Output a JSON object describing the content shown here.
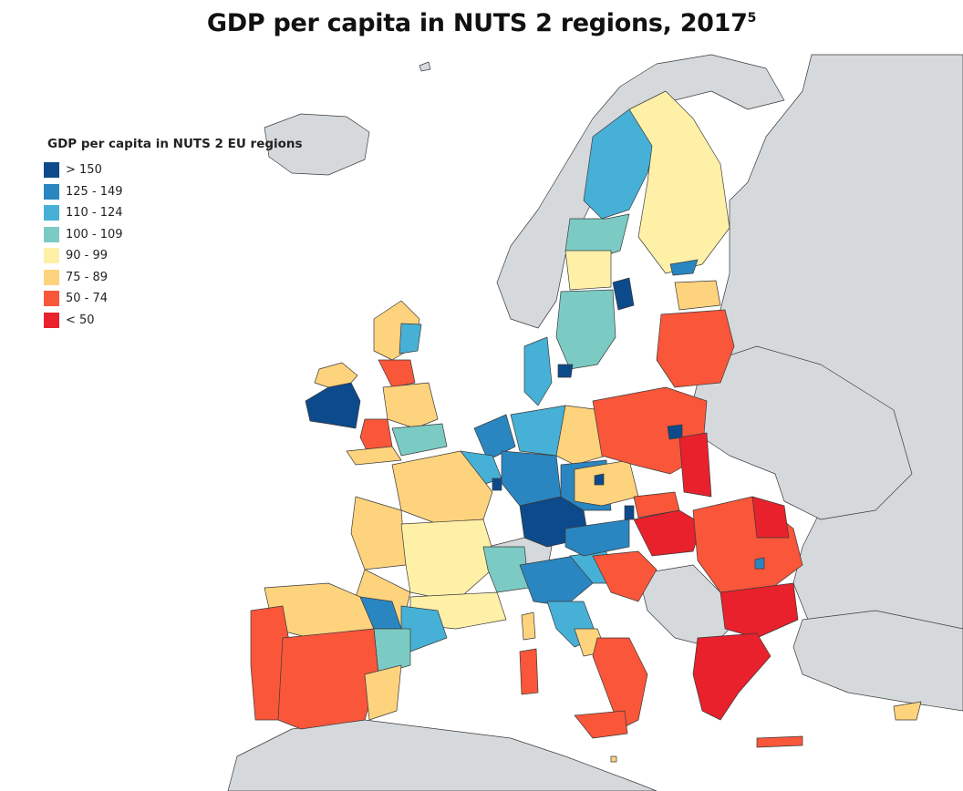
{
  "title": "GDP per capita in NUTS 2 regions, 2017",
  "title_superscript": "5",
  "legend": {
    "title": "GDP per capita in NUTS 2 EU regions",
    "items": [
      {
        "label": "> 150",
        "color": "#0d4a8b"
      },
      {
        "label": "125 - 149",
        "color": "#2a86c0"
      },
      {
        "label": "110 - 124",
        "color": "#47b0d6"
      },
      {
        "label": "100 - 109",
        "color": "#7bcbc4"
      },
      {
        "label": "90 - 99",
        "color": "#fff0a8"
      },
      {
        "label": "75 - 89",
        "color": "#fed37d"
      },
      {
        "label": "50 - 74",
        "color": "#f9563a"
      },
      {
        "label": "< 50",
        "color": "#e8212c"
      }
    ]
  },
  "colors": {
    "sea": "#ffffff",
    "non_eu_land": "#d5d9dc",
    "border": "#3a3a3a"
  }
}
